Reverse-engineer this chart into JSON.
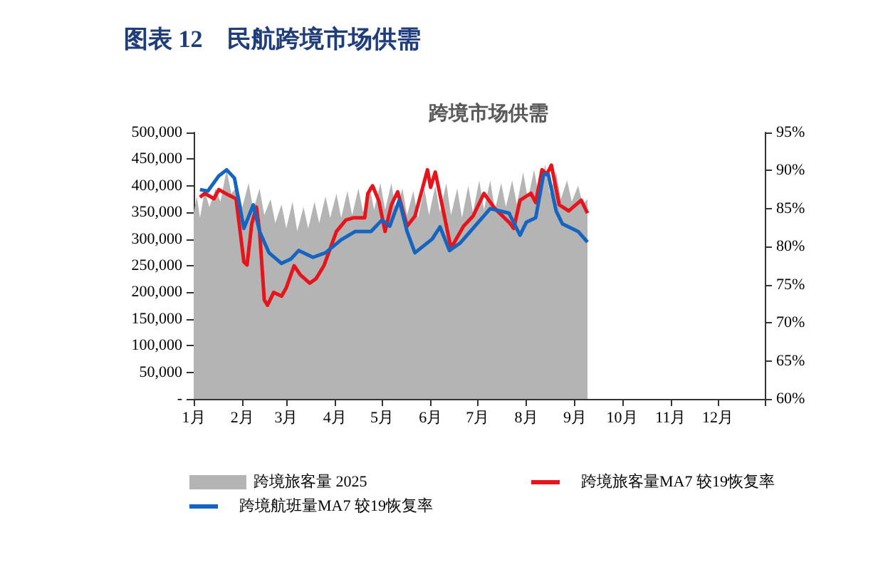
{
  "chart_data": {
    "type": "line",
    "title": "图表 12　民航跨境市场供需",
    "subtitle": "跨境市场供需",
    "xlim": [
      "2025-01-01",
      "2025-12-31"
    ],
    "xticks": [
      {
        "value": "2025-01-01",
        "label": "1月"
      },
      {
        "value": "2025-02-01",
        "label": "2月"
      },
      {
        "value": "2025-03-01",
        "label": "3月"
      },
      {
        "value": "2025-04-01",
        "label": "4月"
      },
      {
        "value": "2025-05-01",
        "label": "5月"
      },
      {
        "value": "2025-06-01",
        "label": "6月"
      },
      {
        "value": "2025-07-01",
        "label": "7月"
      },
      {
        "value": "2025-08-01",
        "label": "8月"
      },
      {
        "value": "2025-09-01",
        "label": "9月"
      },
      {
        "value": "2025-10-01",
        "label": "10月"
      },
      {
        "value": "2025-11-01",
        "label": "11月"
      },
      {
        "value": "2025-12-01",
        "label": "12月"
      },
      {
        "value": "2025-12-31",
        "label": null
      }
    ],
    "ylim": [
      0,
      500000
    ],
    "yticks": [
      {
        "value": 0,
        "label": "-"
      },
      {
        "value": 50000,
        "label": "50,000"
      },
      {
        "value": 100000,
        "label": "100,000"
      },
      {
        "value": 150000,
        "label": "150,000"
      },
      {
        "value": 200000,
        "label": "200,000"
      },
      {
        "value": 250000,
        "label": "250,000"
      },
      {
        "value": 300000,
        "label": "300,000"
      },
      {
        "value": 350000,
        "label": "350,000"
      },
      {
        "value": 400000,
        "label": "400,000"
      },
      {
        "value": 450000,
        "label": "450,000"
      },
      {
        "value": 500000,
        "label": "500,000"
      }
    ],
    "y2lim": [
      60,
      95
    ],
    "y2ticks": [
      {
        "value": 60,
        "label": "60%"
      },
      {
        "value": 65,
        "label": "65%"
      },
      {
        "value": 70,
        "label": "70%"
      },
      {
        "value": 75,
        "label": "75%"
      },
      {
        "value": 80,
        "label": "80%"
      },
      {
        "value": 85,
        "label": "85%"
      },
      {
        "value": 90,
        "label": "90%"
      },
      {
        "value": 95,
        "label": "95%"
      }
    ],
    "grid": false,
    "legend": "bottom",
    "marker": "none",
    "line_style": "solid",
    "series": [
      {
        "name": "跨境旅客量 2025",
        "type": "area",
        "color": "#b4b4b4",
        "x": [
          "2025-01-01",
          "2025-01-03",
          "2025-01-05",
          "2025-01-08",
          "2025-01-11",
          "2025-01-15",
          "2025-01-18",
          "2025-01-22",
          "2025-01-25",
          "2025-01-29",
          "2025-02-01",
          "2025-02-05",
          "2025-02-08",
          "2025-02-12",
          "2025-02-15",
          "2025-02-19",
          "2025-02-22",
          "2025-02-26",
          "2025-03-01",
          "2025-03-05",
          "2025-03-08",
          "2025-03-12",
          "2025-03-15",
          "2025-03-19",
          "2025-03-22",
          "2025-03-26",
          "2025-03-29",
          "2025-04-02",
          "2025-04-05",
          "2025-04-09",
          "2025-04-12",
          "2025-04-16",
          "2025-04-19",
          "2025-04-23",
          "2025-04-26",
          "2025-04-30",
          "2025-05-03",
          "2025-05-07",
          "2025-05-10",
          "2025-05-14",
          "2025-05-17",
          "2025-05-21",
          "2025-05-24",
          "2025-05-28",
          "2025-05-31",
          "2025-06-04",
          "2025-06-07",
          "2025-06-11",
          "2025-06-14",
          "2025-06-18",
          "2025-06-21",
          "2025-06-25",
          "2025-06-28",
          "2025-07-02",
          "2025-07-05",
          "2025-07-09",
          "2025-07-12",
          "2025-07-16",
          "2025-07-19",
          "2025-07-23",
          "2025-07-26",
          "2025-07-30",
          "2025-08-02",
          "2025-08-06",
          "2025-08-09",
          "2025-08-13",
          "2025-08-16",
          "2025-08-20",
          "2025-08-23",
          "2025-08-27",
          "2025-08-30",
          "2025-09-03",
          "2025-09-06",
          "2025-09-09"
        ],
        "values": [
          350000,
          380000,
          340000,
          390000,
          360000,
          395000,
          370000,
          430000,
          385000,
          400000,
          360000,
          405000,
          355000,
          395000,
          345000,
          375000,
          330000,
          365000,
          320000,
          370000,
          315000,
          360000,
          320000,
          370000,
          330000,
          380000,
          340000,
          385000,
          340000,
          390000,
          345000,
          395000,
          350000,
          400000,
          355000,
          405000,
          355000,
          405000,
          350000,
          395000,
          345000,
          390000,
          340000,
          395000,
          345000,
          400000,
          350000,
          405000,
          345000,
          395000,
          340000,
          400000,
          350000,
          410000,
          355000,
          410000,
          355000,
          405000,
          360000,
          410000,
          365000,
          425000,
          375000,
          430000,
          380000,
          440000,
          385000,
          425000,
          375000,
          410000,
          370000,
          400000,
          365000,
          375000
        ]
      },
      {
        "name": "跨境旅客量MA7 较19恢复率",
        "axis": "y2",
        "color": "#e8141c",
        "x": [
          "2025-01-05",
          "2025-01-08",
          "2025-01-14",
          "2025-01-17",
          "2025-01-23",
          "2025-01-28",
          "2025-02-02",
          "2025-02-04",
          "2025-02-07",
          "2025-02-10",
          "2025-02-12",
          "2025-02-15",
          "2025-02-17",
          "2025-02-21",
          "2025-02-26",
          "2025-03-01",
          "2025-03-06",
          "2025-03-10",
          "2025-03-16",
          "2025-03-20",
          "2025-03-25",
          "2025-04-02",
          "2025-04-08",
          "2025-04-13",
          "2025-04-20",
          "2025-04-22",
          "2025-04-25",
          "2025-04-29",
          "2025-05-03",
          "2025-05-07",
          "2025-05-11",
          "2025-05-17",
          "2025-05-22",
          "2025-05-30",
          "2025-06-01",
          "2025-06-04",
          "2025-06-10",
          "2025-06-14",
          "2025-06-22",
          "2025-06-28",
          "2025-07-05",
          "2025-07-12",
          "2025-07-21",
          "2025-07-24",
          "2025-07-28",
          "2025-08-04",
          "2025-08-07",
          "2025-08-11",
          "2025-08-14",
          "2025-08-17",
          "2025-08-22",
          "2025-08-28",
          "2025-09-05",
          "2025-09-09"
        ],
        "values": [
          86.5,
          87,
          86.3,
          87.5,
          86.8,
          86.3,
          78,
          77.6,
          83,
          85.2,
          82,
          73,
          72.3,
          74,
          73.5,
          74.6,
          77.5,
          76.3,
          75.2,
          75.8,
          77.5,
          82,
          83.5,
          83.8,
          83.8,
          87,
          88,
          86,
          82,
          85.5,
          87.2,
          82.7,
          84,
          90.1,
          87.8,
          89.8,
          83.8,
          79.8,
          82.7,
          84,
          87,
          85,
          83.2,
          82.4,
          86.1,
          87,
          85.8,
          90.1,
          89.5,
          90.7,
          85.5,
          84.7,
          86.1,
          84.4
        ]
      },
      {
        "name": "跨境航班量MA7 较19恢复率",
        "axis": "y2",
        "color": "#1565c0",
        "x": [
          "2025-01-05",
          "2025-01-10",
          "2025-01-17",
          "2025-01-22",
          "2025-01-27",
          "2025-02-02",
          "2025-02-08",
          "2025-02-12",
          "2025-02-18",
          "2025-02-26",
          "2025-03-04",
          "2025-03-09",
          "2025-03-18",
          "2025-03-26",
          "2025-04-05",
          "2025-04-14",
          "2025-04-24",
          "2025-05-01",
          "2025-05-06",
          "2025-05-12",
          "2025-05-17",
          "2025-05-22",
          "2025-06-02",
          "2025-06-07",
          "2025-06-13",
          "2025-06-20",
          "2025-07-09",
          "2025-07-21",
          "2025-07-28",
          "2025-08-01",
          "2025-08-07",
          "2025-08-12",
          "2025-08-15",
          "2025-08-20",
          "2025-08-24",
          "2025-09-03",
          "2025-09-09"
        ],
        "values": [
          87.5,
          87.3,
          89.3,
          90.1,
          89,
          82.4,
          85.5,
          82,
          79.2,
          77.8,
          78.4,
          79.5,
          78.6,
          79.2,
          80.9,
          82,
          82,
          83.5,
          82.7,
          86.1,
          82,
          79.2,
          81,
          82.6,
          79.5,
          80.5,
          85,
          84.4,
          81.5,
          83.2,
          83.8,
          89.5,
          89.5,
          84.7,
          83,
          82,
          80.6
        ]
      }
    ]
  }
}
